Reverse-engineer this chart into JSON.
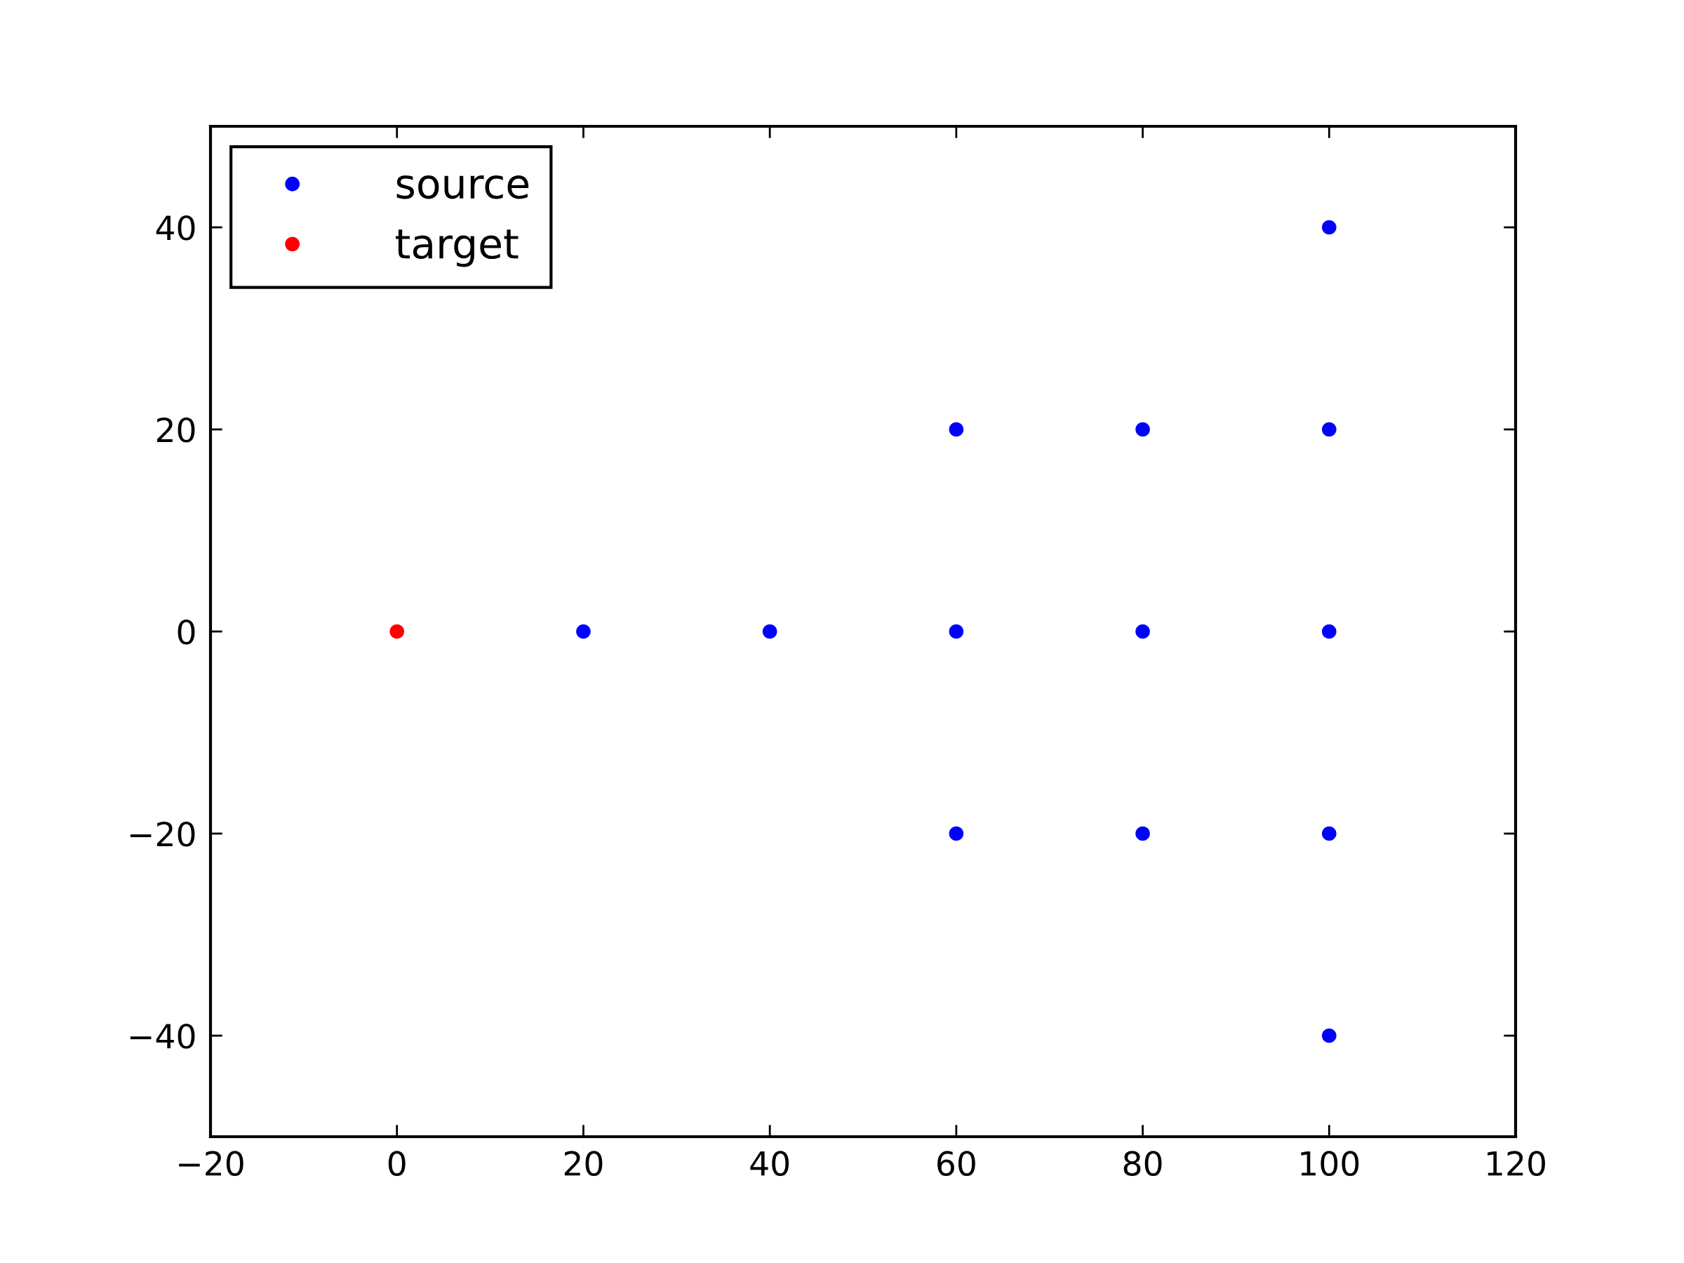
{
  "chart_data": {
    "type": "scatter",
    "xlim": [
      -20,
      120
    ],
    "ylim": [
      -50,
      50
    ],
    "xticks": [
      -20,
      0,
      20,
      40,
      60,
      80,
      100,
      120
    ],
    "yticks": [
      -40,
      -20,
      0,
      20,
      40
    ],
    "grid": false,
    "legend": "top left",
    "marker": "circle",
    "series": [
      {
        "name": "source",
        "color": "#0000ff",
        "x": [
          20,
          40,
          60,
          60,
          60,
          80,
          80,
          80,
          100,
          100,
          100,
          100,
          100
        ],
        "values": [
          0,
          0,
          20,
          0,
          -20,
          20,
          0,
          -20,
          40,
          20,
          0,
          -20,
          -40
        ]
      },
      {
        "name": "target",
        "color": "#ff0000",
        "x": [
          0
        ],
        "values": [
          0
        ]
      }
    ]
  }
}
